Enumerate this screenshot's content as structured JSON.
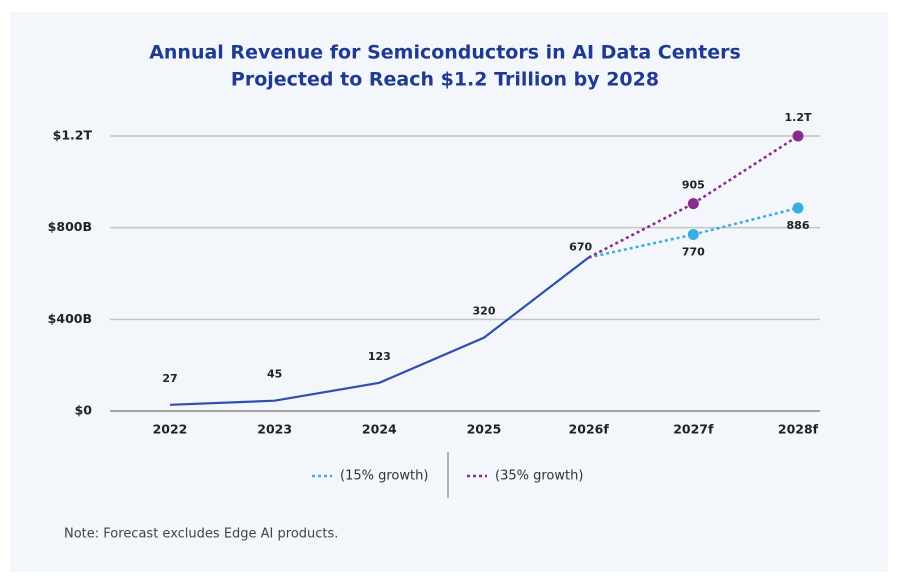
{
  "chart_data": {
    "type": "line",
    "title": [
      "Annual Revenue for Semiconductors in AI Data Centers",
      "Projected to Reach $1.2 Trillion by 2028"
    ],
    "categories": [
      "2022",
      "2023",
      "2024",
      "2025",
      "2026f",
      "2027f",
      "2028f"
    ],
    "series": [
      {
        "color": "#2f4fae",
        "style": "solid",
        "values": [
          27,
          45,
          123,
          320,
          670,
          null,
          null
        ]
      },
      {
        "name": "(15% growth)",
        "color": "#3aaee0",
        "style": "dotted",
        "values": [
          null,
          null,
          null,
          null,
          null,
          770,
          886
        ]
      },
      {
        "name": "(35% growth)",
        "color": "#8b2a8e",
        "style": "dotted",
        "values": [
          null,
          null,
          null,
          null,
          null,
          905,
          1200
        ],
        "value_labels": [
          null,
          null,
          null,
          null,
          null,
          "905",
          "1.2T"
        ]
      }
    ],
    "ylim": [
      0,
      1200
    ],
    "yticks": [
      {
        "value": 0,
        "label": "$0"
      },
      {
        "value": 400,
        "label": "$400B"
      },
      {
        "value": 800,
        "label": "$800B"
      },
      {
        "value": 1200,
        "label": "$1.2T"
      }
    ],
    "grid": true,
    "legend": "bottom",
    "note": "Note: Forecast excludes Edge AI products."
  }
}
